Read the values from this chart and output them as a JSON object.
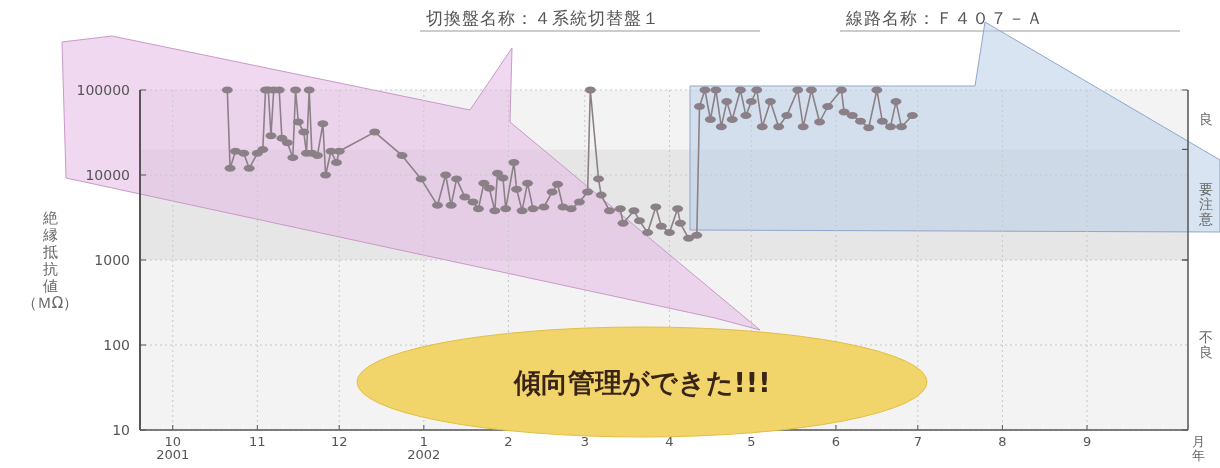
{
  "chart_data": {
    "type": "line",
    "annotations": [
      "切換盤名称：４系統切替盤１",
      "線路名称：Ｆ４０７－Ａ",
      "傾向管理ができた!!!"
    ],
    "ylabel": "絶縁抵抗値（ＭΩ）",
    "xlabel": "月年",
    "log": "y",
    "grid": true,
    "marker": "circle",
    "line_style": "solid",
    "xlim": [
      "2001-09-19",
      "2002-10-08"
    ],
    "xticks": [
      {
        "value": "2001-10-01",
        "label": "10\n2001"
      },
      {
        "value": "2001-11-01",
        "label": "11"
      },
      {
        "value": "2001-12-01",
        "label": "12"
      },
      {
        "value": "2002-01-01",
        "label": "1\n2002"
      },
      {
        "value": "2002-02-01",
        "label": "2"
      },
      {
        "value": "2002-03-01",
        "label": "3"
      },
      {
        "value": "2002-04-01",
        "label": "4"
      },
      {
        "value": "2002-05-01",
        "label": "5"
      },
      {
        "value": "2002-06-01",
        "label": "6"
      },
      {
        "value": "2002-07-01",
        "label": "7"
      },
      {
        "value": "2002-08-01",
        "label": "8"
      },
      {
        "value": "2002-09-01",
        "label": "9"
      }
    ],
    "ylim": [
      10,
      100000
    ],
    "yticks": [
      10,
      100,
      1000,
      10000,
      100000
    ],
    "bands": [
      {
        "axis": "y",
        "from": 20000,
        "to": 100000,
        "label": "良",
        "color": "#f3f3f3"
      },
      {
        "axis": "y",
        "from": 1000,
        "to": 20000,
        "label": "要注意",
        "color": "#e6e6e6"
      },
      {
        "axis": "y",
        "from": 10,
        "to": 1000,
        "label": "不良",
        "color": "#f3f3f3"
      }
    ],
    "series": [
      {
        "color": "#8c8088",
        "x": [
          "2001-10-21",
          "2001-10-22",
          "2001-10-24",
          "2001-10-27",
          "2001-10-29",
          "2001-11-01",
          "2001-11-03",
          "2001-11-04",
          "2001-11-05",
          "2001-11-06",
          "2001-11-07",
          "2001-11-09",
          "2001-11-10",
          "2001-11-12",
          "2001-11-14",
          "2001-11-15",
          "2001-11-16",
          "2001-11-18",
          "2001-11-19",
          "2001-11-20",
          "2001-11-21",
          "2001-11-23",
          "2001-11-25",
          "2001-11-26",
          "2001-11-28",
          "2001-11-30",
          "2001-12-01",
          "2001-12-14",
          "2001-12-24",
          "2001-12-31",
          "2002-01-06",
          "2002-01-09",
          "2002-01-11",
          "2002-01-13",
          "2002-01-16",
          "2002-01-19",
          "2002-01-21",
          "2002-01-23",
          "2002-01-25",
          "2002-01-27",
          "2002-01-28",
          "2002-01-30",
          "2002-01-31",
          "2002-02-03",
          "2002-02-04",
          "2002-02-06",
          "2002-02-08",
          "2002-02-10",
          "2002-02-14",
          "2002-02-17",
          "2002-02-19",
          "2002-02-21",
          "2002-02-24",
          "2002-02-27",
          "2002-03-02",
          "2002-03-03",
          "2002-03-06",
          "2002-03-07",
          "2002-03-10",
          "2002-03-14",
          "2002-03-15",
          "2002-03-19",
          "2002-03-21",
          "2002-03-24",
          "2002-03-27",
          "2002-03-29",
          "2002-04-01",
          "2002-04-04",
          "2002-04-05",
          "2002-04-08",
          "2002-04-11",
          "2002-04-12",
          "2002-04-14",
          "2002-04-16",
          "2002-04-18",
          "2002-04-20",
          "2002-04-22",
          "2002-04-24",
          "2002-04-27",
          "2002-04-29",
          "2002-05-01",
          "2002-05-03",
          "2002-05-05",
          "2002-05-08",
          "2002-05-11",
          "2002-05-14",
          "2002-05-18",
          "2002-05-20",
          "2002-05-23",
          "2002-05-26",
          "2002-05-29",
          "2002-06-03",
          "2002-06-04",
          "2002-06-07",
          "2002-06-10",
          "2002-06-13",
          "2002-06-16",
          "2002-06-18",
          "2002-06-21",
          "2002-06-23",
          "2002-06-25",
          "2002-06-29"
        ],
        "values": [
          100000,
          12000,
          19000,
          18000,
          12000,
          18000,
          20000,
          100000,
          100000,
          29000,
          100000,
          100000,
          27000,
          24000,
          16000,
          100000,
          42000,
          32000,
          18000,
          100000,
          18000,
          17000,
          40000,
          10000,
          19000,
          14000,
          19000,
          32000,
          17000,
          9000,
          4400,
          10000,
          4400,
          9000,
          5500,
          4800,
          4000,
          8000,
          7000,
          3800,
          10500,
          9200,
          4000,
          14000,
          6800,
          3800,
          8000,
          4000,
          4200,
          6300,
          7800,
          4200,
          4000,
          4800,
          6300,
          100000,
          9000,
          5800,
          3800,
          4000,
          2700,
          3800,
          2900,
          2100,
          4200,
          2500,
          2100,
          4000,
          2700,
          1800,
          1950,
          64000,
          100000,
          45000,
          100000,
          37000,
          73000,
          45000,
          100000,
          50000,
          73000,
          100000,
          37000,
          73000,
          37000,
          50000,
          100000,
          37000,
          100000,
          42000,
          64000,
          100000,
          55000,
          50000,
          43000,
          36000,
          100000,
          43000,
          37000,
          73000,
          37000,
          50000
        ]
      }
    ]
  }
}
